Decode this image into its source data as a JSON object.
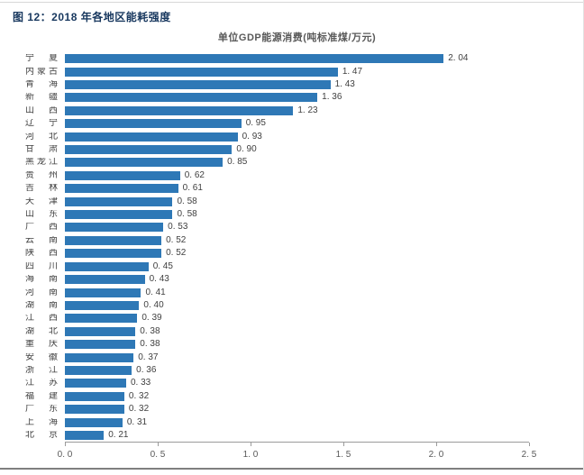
{
  "figure": {
    "caption": "图 12：2018 年各地区能耗强度",
    "caption_color": "#17375E"
  },
  "chart_data": {
    "type": "bar",
    "orientation": "horizontal",
    "title": "单位GDP能源消费(吨标准煤/万元)",
    "title_color": "#595959",
    "categories": [
      "宁夏",
      "内蒙古",
      "青海",
      "新疆",
      "山西",
      "辽宁",
      "河北",
      "甘肃",
      "黑龙江",
      "贵州",
      "吉林",
      "天津",
      "山东",
      "广西",
      "云南",
      "陕西",
      "四川",
      "海南",
      "河南",
      "湖南",
      "江西",
      "湖北",
      "重庆",
      "安徽",
      "浙江",
      "江苏",
      "福建",
      "广东",
      "上海",
      "北京"
    ],
    "values": [
      2.04,
      1.47,
      1.43,
      1.36,
      1.23,
      0.95,
      0.93,
      0.9,
      0.85,
      0.62,
      0.61,
      0.58,
      0.58,
      0.53,
      0.52,
      0.52,
      0.45,
      0.43,
      0.41,
      0.4,
      0.39,
      0.38,
      0.38,
      0.37,
      0.36,
      0.33,
      0.32,
      0.32,
      0.31,
      0.21
    ],
    "value_labels": [
      "2. 04",
      "1. 47",
      "1. 43",
      "1. 36",
      "1. 23",
      "0. 95",
      "0. 93",
      "0. 90",
      "0. 85",
      "0. 62",
      "0. 61",
      "0. 58",
      "0. 58",
      "0. 53",
      "0. 52",
      "0. 52",
      "0. 45",
      "0. 43",
      "0. 41",
      "0. 40",
      "0. 39",
      "0. 38",
      "0. 38",
      "0. 37",
      "0. 36",
      "0. 33",
      "0. 32",
      "0. 32",
      "0. 31",
      "0. 21"
    ],
    "xlim": [
      0,
      2.5
    ],
    "x_ticks": [
      0,
      0.5,
      1.0,
      1.5,
      2.0,
      2.5
    ],
    "x_tick_labels": [
      "0. 0",
      "0. 5",
      "1. 0",
      "1. 5",
      "2. 0",
      "2. 5"
    ],
    "bar_color": "#2E78B6",
    "axis_color": "#9B9B9B",
    "grid": false,
    "legend": false
  }
}
